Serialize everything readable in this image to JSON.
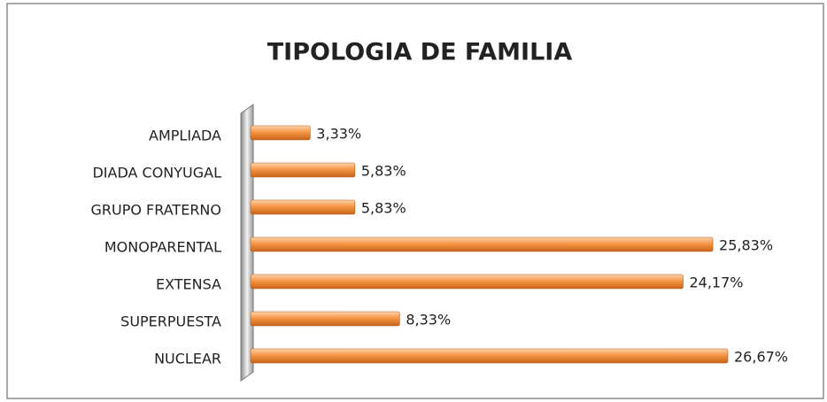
{
  "chart_data": {
    "type": "bar",
    "orientation": "horizontal",
    "title": "TIPOLOGIA DE FAMILIA",
    "categories": [
      "AMPLIADA",
      "DIADA CONYUGAL",
      "GRUPO FRATERNO",
      "MONOPARENTAL",
      "EXTENSA",
      "SUPERPUESTA",
      "NUCLEAR"
    ],
    "values": [
      3.33,
      5.83,
      5.83,
      25.83,
      24.17,
      8.33,
      26.67
    ],
    "value_labels": [
      "3,33%",
      "5,83%",
      "5,83%",
      "25,83%",
      "24,17%",
      "8,33%",
      "26,67%"
    ],
    "color": "#f79646"
  }
}
